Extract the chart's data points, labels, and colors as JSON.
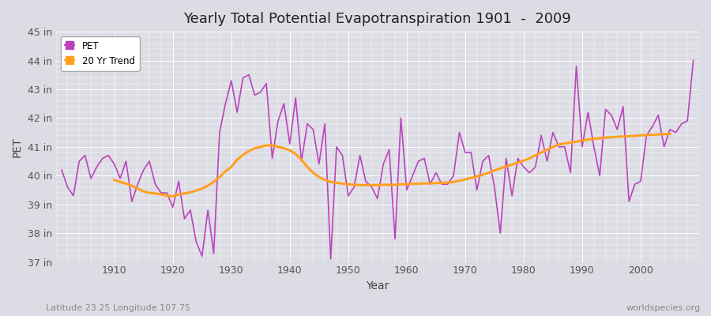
{
  "title": "Yearly Total Potential Evapotranspiration 1901  -  2009",
  "xlabel": "Year",
  "ylabel": "PET",
  "subtitle_left": "Latitude 23.25 Longitude 107.75",
  "subtitle_right": "worldspecies.org",
  "bg_color": "#dcdce4",
  "plot_bg_color": "#dcdce4",
  "pet_color": "#bb44bb",
  "trend_color": "#ffa020",
  "ylim_min": 37,
  "ylim_max": 45,
  "ytick_labels": [
    "37 in",
    "38 in",
    "39 in",
    "40 in",
    "41 in",
    "42 in",
    "43 in",
    "44 in",
    "45 in"
  ],
  "ytick_values": [
    37,
    38,
    39,
    40,
    41,
    42,
    43,
    44,
    45
  ],
  "years": [
    1901,
    1902,
    1903,
    1904,
    1905,
    1906,
    1907,
    1908,
    1909,
    1910,
    1911,
    1912,
    1913,
    1914,
    1915,
    1916,
    1917,
    1918,
    1919,
    1920,
    1921,
    1922,
    1923,
    1924,
    1925,
    1926,
    1927,
    1928,
    1929,
    1930,
    1931,
    1932,
    1933,
    1934,
    1935,
    1936,
    1937,
    1938,
    1939,
    1940,
    1941,
    1942,
    1943,
    1944,
    1945,
    1946,
    1947,
    1948,
    1949,
    1950,
    1951,
    1952,
    1953,
    1954,
    1955,
    1956,
    1957,
    1958,
    1959,
    1960,
    1961,
    1962,
    1963,
    1964,
    1965,
    1966,
    1967,
    1968,
    1969,
    1970,
    1971,
    1972,
    1973,
    1974,
    1975,
    1976,
    1977,
    1978,
    1979,
    1980,
    1981,
    1982,
    1983,
    1984,
    1985,
    1986,
    1987,
    1988,
    1989,
    1990,
    1991,
    1992,
    1993,
    1994,
    1995,
    1996,
    1997,
    1998,
    1999,
    2000,
    2001,
    2002,
    2003,
    2004,
    2005,
    2006,
    2007,
    2008,
    2009
  ],
  "pet_values": [
    40.2,
    39.6,
    39.3,
    40.5,
    40.7,
    39.9,
    40.3,
    40.6,
    40.7,
    40.4,
    39.9,
    40.5,
    39.1,
    39.7,
    40.2,
    40.5,
    39.7,
    39.4,
    39.4,
    38.9,
    39.8,
    38.5,
    38.8,
    37.7,
    37.2,
    38.8,
    37.3,
    41.5,
    42.5,
    43.3,
    42.2,
    43.4,
    43.5,
    42.8,
    42.9,
    43.2,
    40.6,
    41.9,
    42.5,
    41.1,
    42.7,
    40.5,
    41.8,
    41.6,
    40.4,
    41.8,
    37.1,
    41.0,
    40.7,
    39.3,
    39.6,
    40.7,
    39.8,
    39.6,
    39.2,
    40.4,
    40.9,
    37.8,
    42.0,
    39.5,
    40.0,
    40.5,
    40.6,
    39.7,
    40.1,
    39.7,
    39.7,
    40.0,
    41.5,
    40.8,
    40.8,
    39.5,
    40.5,
    40.7,
    39.6,
    38.0,
    40.6,
    39.3,
    40.6,
    40.3,
    40.1,
    40.3,
    41.4,
    40.5,
    41.5,
    41.0,
    41.0,
    40.1,
    43.8,
    41.0,
    42.2,
    41.0,
    40.0,
    42.3,
    42.1,
    41.6,
    42.4,
    39.1,
    39.7,
    39.8,
    41.4,
    41.7,
    42.1,
    41.0,
    41.6,
    41.5,
    41.8,
    41.9,
    44.0
  ],
  "trend_values": [
    null,
    null,
    null,
    null,
    null,
    null,
    null,
    null,
    null,
    39.85,
    39.78,
    39.72,
    39.65,
    39.55,
    39.45,
    39.4,
    39.38,
    39.35,
    39.3,
    39.28,
    39.35,
    39.38,
    39.42,
    39.48,
    39.55,
    39.65,
    39.78,
    39.95,
    40.15,
    40.3,
    40.55,
    40.72,
    40.85,
    40.95,
    41.0,
    41.05,
    41.05,
    41.0,
    40.95,
    40.88,
    40.75,
    40.55,
    40.3,
    40.1,
    39.95,
    39.85,
    39.78,
    39.75,
    39.72,
    39.7,
    39.68,
    39.67,
    39.67,
    39.67,
    39.67,
    39.68,
    39.68,
    39.68,
    39.7,
    39.7,
    39.72,
    39.72,
    39.73,
    39.73,
    39.74,
    39.75,
    39.76,
    39.78,
    39.82,
    39.87,
    39.92,
    39.97,
    40.03,
    40.1,
    40.18,
    40.25,
    40.32,
    40.38,
    40.45,
    40.52,
    40.6,
    40.7,
    40.8,
    40.9,
    41.0,
    41.08,
    41.12,
    41.15,
    41.18,
    41.22,
    41.25,
    41.28,
    41.3,
    41.32,
    41.33,
    41.35,
    41.36,
    41.37,
    41.38,
    41.4,
    41.41,
    41.42,
    41.43,
    41.44,
    41.45,
    null
  ]
}
